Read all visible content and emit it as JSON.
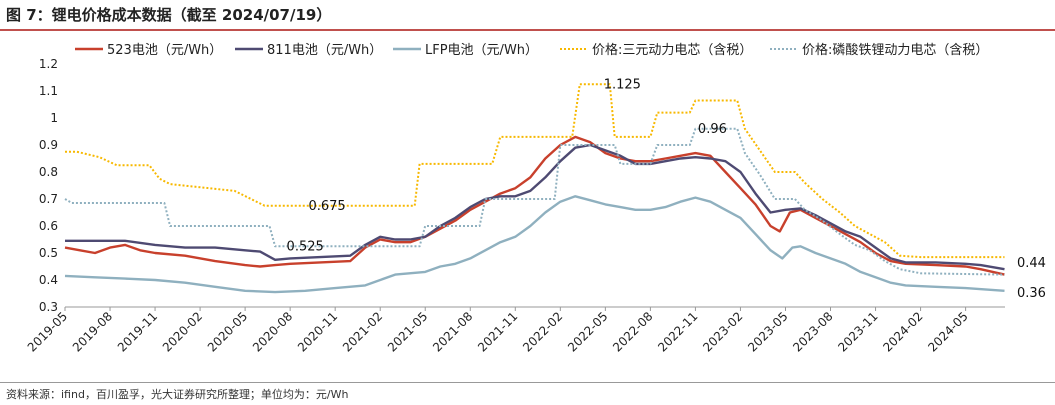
{
  "header": {
    "title": "图 7：锂电价格成本数据（截至 2024/07/19）"
  },
  "footer": {
    "source": "资料来源：ifind，百川盈孚，光大证券研究所整理；单位均为：元/Wh"
  },
  "colors": {
    "s523": "#c8402c",
    "s811": "#4e4a72",
    "lfp": "#8fb0bf",
    "price_ternary": "#f7b800",
    "price_lfp": "#8fb0bf"
  },
  "chart_data": {
    "type": "line",
    "ylim": [
      0.3,
      1.2
    ],
    "yticks": [
      0.3,
      0.4,
      0.5,
      0.6,
      0.7,
      0.8,
      0.9,
      1,
      1.1,
      1.2
    ],
    "ytick_labels": [
      "0.3",
      "0.4",
      "0.5",
      "0.6",
      "0.7",
      "0.8",
      "0.9",
      "1",
      "1.1",
      "1.2"
    ],
    "xlim": [
      "2019-05",
      "2024-07"
    ],
    "xticks": [
      "2019-05",
      "2019-08",
      "2019-11",
      "2020-02",
      "2020-05",
      "2020-08",
      "2020-11",
      "2021-02",
      "2021-05",
      "2021-08",
      "2021-11",
      "2022-02",
      "2022-05",
      "2022-08",
      "2022-11",
      "2023-02",
      "2023-05",
      "2023-08",
      "2023-11",
      "2024-02",
      "2024-05"
    ],
    "legend_position": "top",
    "grid": false,
    "series": [
      {
        "name": "523电池（元/Wh）",
        "style": "solid",
        "points": [
          [
            "2019-05-01",
            0.52
          ],
          [
            "2019-06-01",
            0.51
          ],
          [
            "2019-07-01",
            0.5
          ],
          [
            "2019-08-01",
            0.52
          ],
          [
            "2019-09-01",
            0.53
          ],
          [
            "2019-10-01",
            0.51
          ],
          [
            "2019-11-01",
            0.5
          ],
          [
            "2020-01-01",
            0.49
          ],
          [
            "2020-03-01",
            0.47
          ],
          [
            "2020-05-01",
            0.455
          ],
          [
            "2020-06-01",
            0.45
          ],
          [
            "2020-07-01",
            0.455
          ],
          [
            "2020-08-01",
            0.46
          ],
          [
            "2020-10-01",
            0.465
          ],
          [
            "2020-12-01",
            0.47
          ],
          [
            "2021-01-01",
            0.52
          ],
          [
            "2021-02-01",
            0.55
          ],
          [
            "2021-03-01",
            0.54
          ],
          [
            "2021-04-01",
            0.54
          ],
          [
            "2021-05-01",
            0.56
          ],
          [
            "2021-06-01",
            0.59
          ],
          [
            "2021-07-01",
            0.62
          ],
          [
            "2021-08-01",
            0.66
          ],
          [
            "2021-09-01",
            0.69
          ],
          [
            "2021-10-01",
            0.72
          ],
          [
            "2021-11-01",
            0.74
          ],
          [
            "2021-12-01",
            0.78
          ],
          [
            "2022-01-01",
            0.85
          ],
          [
            "2022-02-01",
            0.9
          ],
          [
            "2022-03-01",
            0.93
          ],
          [
            "2022-04-01",
            0.91
          ],
          [
            "2022-05-01",
            0.87
          ],
          [
            "2022-06-01",
            0.85
          ],
          [
            "2022-07-01",
            0.84
          ],
          [
            "2022-08-01",
            0.84
          ],
          [
            "2022-09-01",
            0.85
          ],
          [
            "2022-10-01",
            0.86
          ],
          [
            "2022-11-01",
            0.87
          ],
          [
            "2022-12-01",
            0.86
          ],
          [
            "2023-01-01",
            0.8
          ],
          [
            "2023-02-01",
            0.74
          ],
          [
            "2023-03-01",
            0.68
          ],
          [
            "2023-04-01",
            0.6
          ],
          [
            "2023-04-20",
            0.58
          ],
          [
            "2023-05-10",
            0.65
          ],
          [
            "2023-06-01",
            0.66
          ],
          [
            "2023-07-01",
            0.63
          ],
          [
            "2023-08-01",
            0.6
          ],
          [
            "2023-09-01",
            0.57
          ],
          [
            "2023-10-01",
            0.54
          ],
          [
            "2023-11-01",
            0.5
          ],
          [
            "2023-12-01",
            0.47
          ],
          [
            "2024-01-01",
            0.46
          ],
          [
            "2024-03-01",
            0.455
          ],
          [
            "2024-05-01",
            0.45
          ],
          [
            "2024-06-01",
            0.44
          ],
          [
            "2024-07-19",
            0.42
          ]
        ]
      },
      {
        "name": "811电池（元/Wh）",
        "style": "solid",
        "points": [
          [
            "2019-05-01",
            0.545
          ],
          [
            "2019-07-01",
            0.545
          ],
          [
            "2019-09-01",
            0.545
          ],
          [
            "2019-11-01",
            0.53
          ],
          [
            "2020-01-01",
            0.52
          ],
          [
            "2020-03-01",
            0.52
          ],
          [
            "2020-05-01",
            0.51
          ],
          [
            "2020-06-01",
            0.505
          ],
          [
            "2020-07-01",
            0.475
          ],
          [
            "2020-08-01",
            0.48
          ],
          [
            "2020-10-01",
            0.485
          ],
          [
            "2020-12-01",
            0.49
          ],
          [
            "2021-01-01",
            0.53
          ],
          [
            "2021-02-01",
            0.56
          ],
          [
            "2021-03-01",
            0.55
          ],
          [
            "2021-04-01",
            0.55
          ],
          [
            "2021-05-01",
            0.56
          ],
          [
            "2021-06-01",
            0.6
          ],
          [
            "2021-07-01",
            0.63
          ],
          [
            "2021-08-01",
            0.67
          ],
          [
            "2021-09-01",
            0.7
          ],
          [
            "2021-10-01",
            0.71
          ],
          [
            "2021-11-01",
            0.71
          ],
          [
            "2021-12-01",
            0.73
          ],
          [
            "2022-01-01",
            0.78
          ],
          [
            "2022-02-01",
            0.84
          ],
          [
            "2022-03-01",
            0.89
          ],
          [
            "2022-04-01",
            0.9
          ],
          [
            "2022-05-01",
            0.88
          ],
          [
            "2022-06-01",
            0.86
          ],
          [
            "2022-07-01",
            0.83
          ],
          [
            "2022-08-01",
            0.83
          ],
          [
            "2022-09-01",
            0.84
          ],
          [
            "2022-10-01",
            0.85
          ],
          [
            "2022-11-01",
            0.855
          ],
          [
            "2022-12-01",
            0.85
          ],
          [
            "2023-01-01",
            0.84
          ],
          [
            "2023-02-01",
            0.8
          ],
          [
            "2023-03-01",
            0.72
          ],
          [
            "2023-04-01",
            0.65
          ],
          [
            "2023-05-01",
            0.66
          ],
          [
            "2023-06-01",
            0.665
          ],
          [
            "2023-07-01",
            0.64
          ],
          [
            "2023-08-01",
            0.61
          ],
          [
            "2023-09-01",
            0.58
          ],
          [
            "2023-10-01",
            0.56
          ],
          [
            "2023-11-01",
            0.52
          ],
          [
            "2023-12-01",
            0.48
          ],
          [
            "2024-01-01",
            0.465
          ],
          [
            "2024-03-01",
            0.465
          ],
          [
            "2024-05-01",
            0.46
          ],
          [
            "2024-06-01",
            0.455
          ],
          [
            "2024-07-19",
            0.44
          ]
        ]
      },
      {
        "name": "LFP电池（元/Wh）",
        "style": "solid",
        "points": [
          [
            "2019-05-01",
            0.415
          ],
          [
            "2019-07-01",
            0.41
          ],
          [
            "2019-09-01",
            0.405
          ],
          [
            "2019-11-01",
            0.4
          ],
          [
            "2020-01-01",
            0.39
          ],
          [
            "2020-03-01",
            0.375
          ],
          [
            "2020-05-01",
            0.36
          ],
          [
            "2020-07-01",
            0.355
          ],
          [
            "2020-09-01",
            0.36
          ],
          [
            "2020-11-01",
            0.37
          ],
          [
            "2021-01-01",
            0.38
          ],
          [
            "2021-02-01",
            0.4
          ],
          [
            "2021-03-01",
            0.42
          ],
          [
            "2021-05-01",
            0.43
          ],
          [
            "2021-06-01",
            0.45
          ],
          [
            "2021-07-01",
            0.46
          ],
          [
            "2021-08-01",
            0.48
          ],
          [
            "2021-09-01",
            0.51
          ],
          [
            "2021-10-01",
            0.54
          ],
          [
            "2021-11-01",
            0.56
          ],
          [
            "2021-12-01",
            0.6
          ],
          [
            "2022-01-01",
            0.65
          ],
          [
            "2022-02-01",
            0.69
          ],
          [
            "2022-03-01",
            0.71
          ],
          [
            "2022-04-01",
            0.695
          ],
          [
            "2022-05-01",
            0.68
          ],
          [
            "2022-06-01",
            0.67
          ],
          [
            "2022-07-01",
            0.66
          ],
          [
            "2022-08-01",
            0.66
          ],
          [
            "2022-09-01",
            0.67
          ],
          [
            "2022-10-01",
            0.69
          ],
          [
            "2022-11-01",
            0.705
          ],
          [
            "2022-12-01",
            0.69
          ],
          [
            "2023-01-01",
            0.66
          ],
          [
            "2023-02-01",
            0.63
          ],
          [
            "2023-03-01",
            0.57
          ],
          [
            "2023-04-01",
            0.51
          ],
          [
            "2023-04-25",
            0.48
          ],
          [
            "2023-05-15",
            0.52
          ],
          [
            "2023-06-01",
            0.525
          ],
          [
            "2023-07-01",
            0.5
          ],
          [
            "2023-08-01",
            0.48
          ],
          [
            "2023-09-01",
            0.46
          ],
          [
            "2023-10-01",
            0.43
          ],
          [
            "2023-11-01",
            0.41
          ],
          [
            "2023-12-01",
            0.39
          ],
          [
            "2024-01-01",
            0.38
          ],
          [
            "2024-03-01",
            0.375
          ],
          [
            "2024-05-01",
            0.37
          ],
          [
            "2024-07-19",
            0.36
          ]
        ]
      },
      {
        "name": "价格:三元动力电芯（含税）",
        "style": "dotted",
        "points": [
          [
            "2019-05-01",
            0.875
          ],
          [
            "2019-05-25",
            0.875
          ],
          [
            "2019-07-10",
            0.855
          ],
          [
            "2019-08-15",
            0.825
          ],
          [
            "2019-10-20",
            0.825
          ],
          [
            "2019-11-10",
            0.775
          ],
          [
            "2019-12-01",
            0.755
          ],
          [
            "2020-04-10",
            0.73
          ],
          [
            "2020-06-10",
            0.675
          ],
          [
            "2021-04-10",
            0.675
          ],
          [
            "2021-04-20",
            0.83
          ],
          [
            "2021-09-15",
            0.83
          ],
          [
            "2021-10-01",
            0.93
          ],
          [
            "2022-02-25",
            0.93
          ],
          [
            "2022-03-10",
            1.125
          ],
          [
            "2022-05-10",
            1.125
          ],
          [
            "2022-05-20",
            0.93
          ],
          [
            "2022-08-01",
            0.93
          ],
          [
            "2022-08-15",
            1.02
          ],
          [
            "2022-10-20",
            1.02
          ],
          [
            "2022-11-01",
            1.065
          ],
          [
            "2023-01-25",
            1.065
          ],
          [
            "2023-02-10",
            0.96
          ],
          [
            "2023-03-10",
            0.88
          ],
          [
            "2023-04-10",
            0.8
          ],
          [
            "2023-05-20",
            0.8
          ],
          [
            "2023-06-10",
            0.76
          ],
          [
            "2023-07-15",
            0.7
          ],
          [
            "2023-08-20",
            0.65
          ],
          [
            "2023-09-20",
            0.6
          ],
          [
            "2023-10-20",
            0.57
          ],
          [
            "2023-11-20",
            0.54
          ],
          [
            "2023-12-20",
            0.49
          ],
          [
            "2024-02-01",
            0.485
          ],
          [
            "2024-07-19",
            0.485
          ]
        ]
      },
      {
        "name": "价格:磷酸铁锂动力电芯（含税）",
        "style": "dotted",
        "points": [
          [
            "2019-05-01",
            0.7
          ],
          [
            "2019-05-15",
            0.685
          ],
          [
            "2019-11-20",
            0.685
          ],
          [
            "2019-12-01",
            0.6
          ],
          [
            "2020-06-20",
            0.6
          ],
          [
            "2020-07-01",
            0.525
          ],
          [
            "2021-04-20",
            0.525
          ],
          [
            "2021-05-01",
            0.6
          ],
          [
            "2021-08-20",
            0.6
          ],
          [
            "2021-09-01",
            0.7
          ],
          [
            "2022-01-20",
            0.7
          ],
          [
            "2022-02-01",
            0.9
          ],
          [
            "2022-05-20",
            0.9
          ],
          [
            "2022-06-01",
            0.83
          ],
          [
            "2022-08-01",
            0.83
          ],
          [
            "2022-08-15",
            0.9
          ],
          [
            "2022-10-20",
            0.9
          ],
          [
            "2022-11-01",
            0.96
          ],
          [
            "2023-01-25",
            0.96
          ],
          [
            "2023-02-10",
            0.87
          ],
          [
            "2023-03-10",
            0.79
          ],
          [
            "2023-04-10",
            0.7
          ],
          [
            "2023-05-20",
            0.7
          ],
          [
            "2023-06-10",
            0.66
          ],
          [
            "2023-07-15",
            0.62
          ],
          [
            "2023-08-20",
            0.57
          ],
          [
            "2023-09-20",
            0.53
          ],
          [
            "2023-10-20",
            0.51
          ],
          [
            "2023-11-20",
            0.47
          ],
          [
            "2023-12-20",
            0.44
          ],
          [
            "2024-02-01",
            0.425
          ],
          [
            "2024-07-19",
            0.42
          ]
        ]
      }
    ],
    "annotations": [
      {
        "text": "0.675",
        "x": "2020-10-15",
        "y": 0.675
      },
      {
        "text": "0.525",
        "x": "2020-09-01",
        "y": 0.525
      },
      {
        "text": "1.125",
        "x": "2022-06-05",
        "y": 1.125
      },
      {
        "text": "0.96",
        "x": "2022-12-05",
        "y": 0.96
      },
      {
        "text": "0.44",
        "x": "2024-07-19",
        "y": 0.44
      },
      {
        "text": "0.36",
        "x": "2024-07-19",
        "y": 0.36
      }
    ]
  }
}
